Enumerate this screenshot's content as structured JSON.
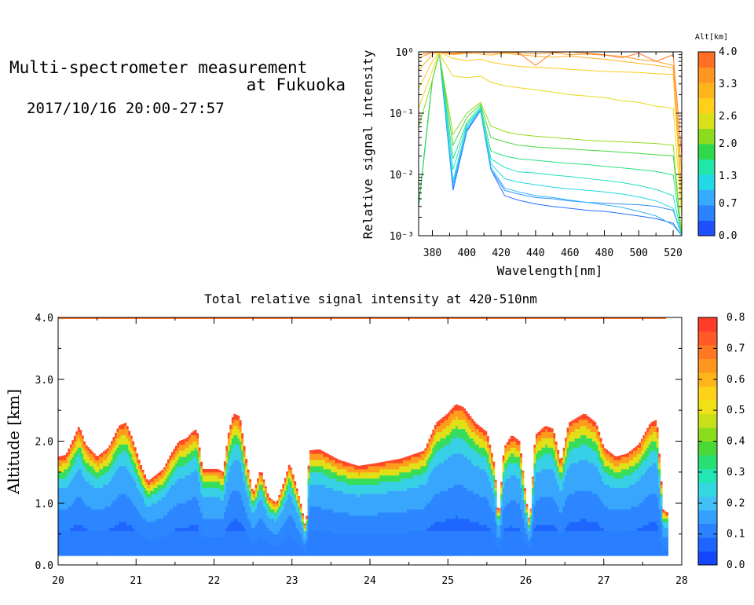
{
  "header": {
    "title_line1": "Multi-spectrometer measurement",
    "title_line2": "at Fukuoka",
    "datetime": "2017/10/16 20:00-27:57"
  },
  "colors": {
    "alt_scale": [
      "#1e50ff",
      "#2a82ff",
      "#36aaff",
      "#22d8e6",
      "#20e6a8",
      "#2ed84a",
      "#8cdc1e",
      "#d8e01a",
      "#ffd01a",
      "#ffb41c",
      "#ff9620",
      "#ff6e22"
    ],
    "intensity_scale": [
      "#1446ff",
      "#1e64ff",
      "#2a82ff",
      "#36a0ff",
      "#40c0f5",
      "#34d8e0",
      "#22e6b4",
      "#26e074",
      "#4ad838",
      "#8cdc1e",
      "#c8e01a",
      "#f0e016",
      "#ffd21a",
      "#ffb41a",
      "#ff961e",
      "#ff7822",
      "#ff5a28",
      "#ff3c28"
    ]
  },
  "chart_data": [
    {
      "type": "line",
      "title": "",
      "xlabel": "Wavelength[nm]",
      "ylabel": "Relative signal intensity",
      "yscale": "log",
      "xlim": [
        372,
        525
      ],
      "ylim": [
        0.001,
        1
      ],
      "x_ticks": [
        "380",
        "400",
        "420",
        "440",
        "460",
        "480",
        "500",
        "520"
      ],
      "y_ticks": [
        "10⁰",
        "10⁻¹",
        "10⁻²",
        "10⁻³"
      ],
      "colorbar": {
        "label": "Alt[km]",
        "ticks": [
          "4.0",
          "3.3",
          "2.6",
          "2.0",
          "1.3",
          "0.7",
          "0.0"
        ],
        "range": [
          0,
          4
        ]
      },
      "x": [
        372,
        380,
        384,
        392,
        400,
        408,
        414,
        422,
        430,
        440,
        450,
        460,
        470,
        480,
        490,
        500,
        510,
        520,
        525
      ],
      "series": [
        {
          "altitude": 0.2,
          "values": [
            0.003,
            0.35,
            0.95,
            0.0055,
            0.05,
            0.11,
            0.012,
            0.0045,
            0.0038,
            0.0033,
            0.003,
            0.0028,
            0.0026,
            0.0025,
            0.0023,
            0.0021,
            0.0019,
            0.0016,
            0.001
          ]
        },
        {
          "altitude": 0.5,
          "values": [
            0.003,
            0.35,
            0.95,
            0.006,
            0.052,
            0.11,
            0.012,
            0.0055,
            0.0048,
            0.0042,
            0.004,
            0.0037,
            0.0035,
            0.0034,
            0.0033,
            0.0032,
            0.003,
            0.0026,
            0.001
          ]
        },
        {
          "altitude": 0.8,
          "values": [
            0.003,
            0.35,
            0.95,
            0.007,
            0.055,
            0.115,
            0.013,
            0.006,
            0.0052,
            0.0045,
            0.0042,
            0.0038,
            0.0035,
            0.0032,
            0.0029,
            0.0025,
            0.0021,
            0.0015,
            0.001
          ]
        },
        {
          "altitude": 1.1,
          "values": [
            0.003,
            0.35,
            0.95,
            0.008,
            0.06,
            0.12,
            0.015,
            0.0085,
            0.0075,
            0.0068,
            0.0062,
            0.0058,
            0.0055,
            0.0052,
            0.0048,
            0.0043,
            0.0037,
            0.0028,
            0.001
          ]
        },
        {
          "altitude": 1.3,
          "values": [
            0.003,
            0.35,
            0.95,
            0.012,
            0.065,
            0.12,
            0.018,
            0.013,
            0.011,
            0.0105,
            0.0098,
            0.0092,
            0.0086,
            0.008,
            0.0074,
            0.0066,
            0.0057,
            0.0045,
            0.001
          ]
        },
        {
          "altitude": 1.6,
          "values": [
            0.003,
            0.35,
            0.95,
            0.018,
            0.07,
            0.13,
            0.024,
            0.02,
            0.018,
            0.017,
            0.016,
            0.015,
            0.0145,
            0.0135,
            0.0128,
            0.012,
            0.0112,
            0.0098,
            0.001
          ]
        },
        {
          "altitude": 1.9,
          "values": [
            0.003,
            0.35,
            0.95,
            0.03,
            0.085,
            0.14,
            0.04,
            0.034,
            0.03,
            0.028,
            0.027,
            0.026,
            0.025,
            0.024,
            0.023,
            0.022,
            0.021,
            0.02,
            0.001
          ]
        },
        {
          "altitude": 2.2,
          "values": [
            0.06,
            0.35,
            0.95,
            0.045,
            0.1,
            0.15,
            0.062,
            0.05,
            0.045,
            0.042,
            0.04,
            0.038,
            0.036,
            0.035,
            0.034,
            0.033,
            0.032,
            0.03,
            0.001
          ]
        },
        {
          "altitude": 2.7,
          "values": [
            0.12,
            0.5,
            0.95,
            0.4,
            0.38,
            0.4,
            0.32,
            0.28,
            0.26,
            0.24,
            0.22,
            0.2,
            0.19,
            0.18,
            0.16,
            0.15,
            0.13,
            0.12,
            0.002
          ]
        },
        {
          "altitude": 3.0,
          "values": [
            0.25,
            0.7,
            0.98,
            0.78,
            0.72,
            0.76,
            0.68,
            0.62,
            0.58,
            0.56,
            0.54,
            0.52,
            0.5,
            0.48,
            0.47,
            0.46,
            0.44,
            0.43,
            0.003
          ]
        },
        {
          "altitude": 3.3,
          "values": [
            0.5,
            0.9,
            0.99,
            0.9,
            0.95,
            0.92,
            0.88,
            0.95,
            0.9,
            0.85,
            0.82,
            0.86,
            0.8,
            0.76,
            0.7,
            0.65,
            0.6,
            0.55,
            0.005
          ]
        },
        {
          "altitude": 3.6,
          "values": [
            0.8,
            0.98,
            0.98,
            0.92,
            0.97,
            1.0,
            0.95,
            0.98,
            0.96,
            0.92,
            0.97,
            0.9,
            0.92,
            0.88,
            0.85,
            0.75,
            0.7,
            0.6,
            0.01
          ]
        },
        {
          "altitude": 3.9,
          "values": [
            0.9,
            0.98,
            1.0,
            0.95,
            1.0,
            0.98,
            1.0,
            0.99,
            0.97,
            0.6,
            0.98,
            1.0,
            0.95,
            0.9,
            0.8,
            0.95,
            0.7,
            0.9,
            0.02
          ]
        }
      ]
    },
    {
      "type": "heatmap",
      "title": "Total relative signal intensity at 420-510nm",
      "xlabel": "",
      "ylabel": "Altitude [km]",
      "xlim": [
        20,
        28
      ],
      "ylim": [
        0,
        4
      ],
      "x_ticks": [
        "20",
        "21",
        "22",
        "23",
        "24",
        "25",
        "26",
        "27",
        "28"
      ],
      "y_ticks": [
        "4.0",
        "3.0",
        "2.0",
        "1.0",
        "0.0"
      ],
      "colorbar": {
        "ticks": [
          "0.8",
          "0.7",
          "0.6",
          "0.5",
          "0.4",
          "0.3",
          "0.2",
          "0.1",
          "0.0"
        ],
        "range": [
          0,
          0.8
        ]
      },
      "data_start_alt": 0.15,
      "data_end_time": 27.8,
      "top_layer_alt": 4.0,
      "boundary_layer_top": [
        [
          20.0,
          1.75
        ],
        [
          20.1,
          1.78
        ],
        [
          20.2,
          2.05
        ],
        [
          20.27,
          2.25
        ],
        [
          20.35,
          1.95
        ],
        [
          20.5,
          1.75
        ],
        [
          20.65,
          1.9
        ],
        [
          20.78,
          2.25
        ],
        [
          20.87,
          2.3
        ],
        [
          20.95,
          2.05
        ],
        [
          21.05,
          1.65
        ],
        [
          21.15,
          1.35
        ],
        [
          21.25,
          1.45
        ],
        [
          21.35,
          1.55
        ],
        [
          21.45,
          1.8
        ],
        [
          21.55,
          2.0
        ],
        [
          21.65,
          2.05
        ],
        [
          21.72,
          2.15
        ],
        [
          21.78,
          2.2
        ],
        [
          21.85,
          1.55
        ],
        [
          21.95,
          1.55
        ],
        [
          22.05,
          1.55
        ],
        [
          22.12,
          1.5
        ],
        [
          22.18,
          2.1
        ],
        [
          22.25,
          2.45
        ],
        [
          22.33,
          2.4
        ],
        [
          22.42,
          1.65
        ],
        [
          22.5,
          1.15
        ],
        [
          22.6,
          1.55
        ],
        [
          22.7,
          1.1
        ],
        [
          22.8,
          1.0
        ],
        [
          22.9,
          1.35
        ],
        [
          22.97,
          1.65
        ],
        [
          23.05,
          1.3
        ],
        [
          23.12,
          0.95
        ],
        [
          23.18,
          0.55
        ],
        [
          23.22,
          1.85
        ],
        [
          23.35,
          1.87
        ],
        [
          23.6,
          1.7
        ],
        [
          23.85,
          1.6
        ],
        [
          24.1,
          1.65
        ],
        [
          24.4,
          1.72
        ],
        [
          24.7,
          1.85
        ],
        [
          24.85,
          2.3
        ],
        [
          25.0,
          2.45
        ],
        [
          25.1,
          2.6
        ],
        [
          25.2,
          2.55
        ],
        [
          25.35,
          2.3
        ],
        [
          25.5,
          2.15
        ],
        [
          25.6,
          1.6
        ],
        [
          25.65,
          0.7
        ],
        [
          25.72,
          1.9
        ],
        [
          25.82,
          2.1
        ],
        [
          25.92,
          2.0
        ],
        [
          26.0,
          1.1
        ],
        [
          26.05,
          0.65
        ],
        [
          26.12,
          2.1
        ],
        [
          26.25,
          2.25
        ],
        [
          26.35,
          2.2
        ],
        [
          26.45,
          1.65
        ],
        [
          26.55,
          2.3
        ],
        [
          26.75,
          2.45
        ],
        [
          26.9,
          2.3
        ],
        [
          27.0,
          1.9
        ],
        [
          27.15,
          1.75
        ],
        [
          27.3,
          1.8
        ],
        [
          27.45,
          1.95
        ],
        [
          27.6,
          2.3
        ],
        [
          27.68,
          2.35
        ],
        [
          27.73,
          1.5
        ],
        [
          27.76,
          0.9
        ],
        [
          27.8,
          0.85
        ]
      ]
    }
  ]
}
